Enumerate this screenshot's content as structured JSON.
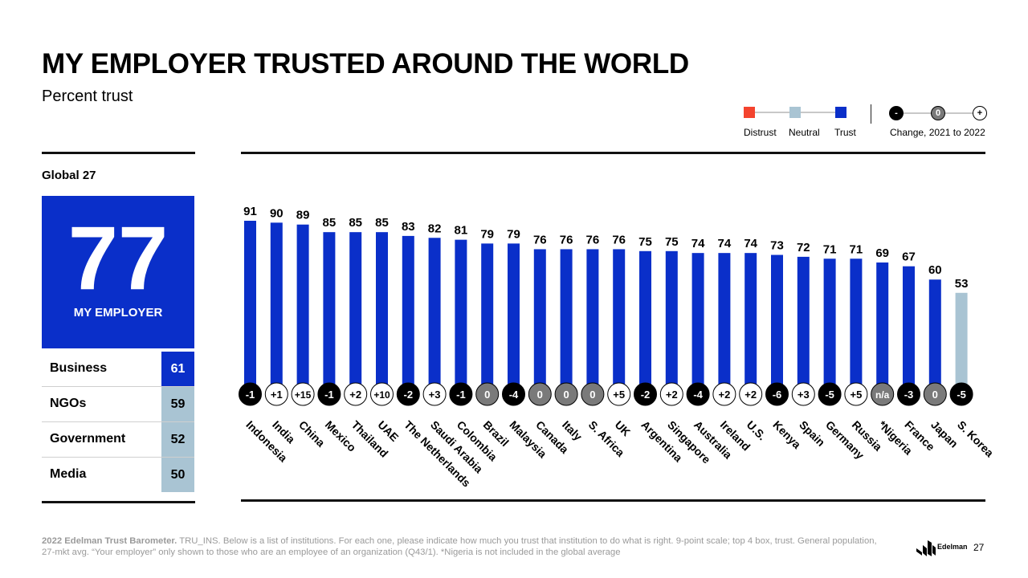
{
  "title": "MY EMPLOYER TRUSTED AROUND THE WORLD",
  "subtitle": "Percent trust",
  "legend": {
    "items": [
      {
        "label": "Distrust",
        "color": "#f4442e"
      },
      {
        "label": "Neutral",
        "color": "#a9c4d3"
      },
      {
        "label": "Trust",
        "color": "#0a2fc9"
      }
    ],
    "change_label": "Change, 2021 to 2022",
    "change_symbols": [
      "-",
      "0",
      "+"
    ]
  },
  "global": {
    "label": "Global 27",
    "value": "77",
    "value_label": "MY EMPLOYER",
    "institutions": [
      {
        "name": "Business",
        "value": "61",
        "level": "trust"
      },
      {
        "name": "NGOs",
        "value": "59",
        "level": "neutral"
      },
      {
        "name": "Government",
        "value": "52",
        "level": "neutral"
      },
      {
        "name": "Media",
        "value": "50",
        "level": "neutral"
      }
    ]
  },
  "chart_data": {
    "type": "bar",
    "categories": [
      "Indonesia",
      "India",
      "China",
      "Mexico",
      "Thailand",
      "UAE",
      "The Netherlands",
      "Saudi Arabia",
      "Colombia",
      "Brazil",
      "Malaysia",
      "Canada",
      "Italy",
      "S. Africa",
      "UK",
      "Argentina",
      "Singapore",
      "Australia",
      "Ireland",
      "U.S.",
      "Kenya",
      "Spain",
      "Germany",
      "Russia",
      "*Nigeria",
      "France",
      "Japan",
      "S. Korea"
    ],
    "values": [
      91,
      90,
      89,
      85,
      85,
      85,
      83,
      82,
      81,
      79,
      79,
      76,
      76,
      76,
      76,
      75,
      75,
      74,
      74,
      74,
      73,
      72,
      71,
      71,
      69,
      67,
      60,
      53
    ],
    "levels": [
      "trust",
      "trust",
      "trust",
      "trust",
      "trust",
      "trust",
      "trust",
      "trust",
      "trust",
      "trust",
      "trust",
      "trust",
      "trust",
      "trust",
      "trust",
      "trust",
      "trust",
      "trust",
      "trust",
      "trust",
      "trust",
      "trust",
      "trust",
      "trust",
      "trust",
      "trust",
      "trust",
      "neutral"
    ],
    "changes": [
      "-1",
      "+1",
      "+15",
      "-1",
      "+2",
      "+10",
      "-2",
      "+3",
      "-1",
      "0",
      "-4",
      "0",
      "0",
      "0",
      "+5",
      "-2",
      "+2",
      "-4",
      "+2",
      "+2",
      "-6",
      "+3",
      "-5",
      "+5",
      "n/a",
      "-3",
      "0",
      "-5"
    ],
    "ylim": [
      0,
      100
    ]
  },
  "colors": {
    "trust": "#0a2fc9",
    "neutral": "#a9c4d3",
    "distrust": "#f4442e",
    "change_negative": "#000000",
    "change_zero": "#7a7a7a",
    "change_positive": "#ffffff"
  },
  "footnote": {
    "source": "2022 Edelman Trust Barometer.",
    "text": " TRU_INS. Below is a list of institutions. For each one, please indicate how much you trust that institution to do what is right. 9-point scale; top 4 box, trust. General population, 27-mkt avg. “Your employer” only shown to those who are an employee of an organization (Q43/1). *Nigeria is not included in the global average"
  },
  "logo_text": "Edelman",
  "page_number": "27"
}
